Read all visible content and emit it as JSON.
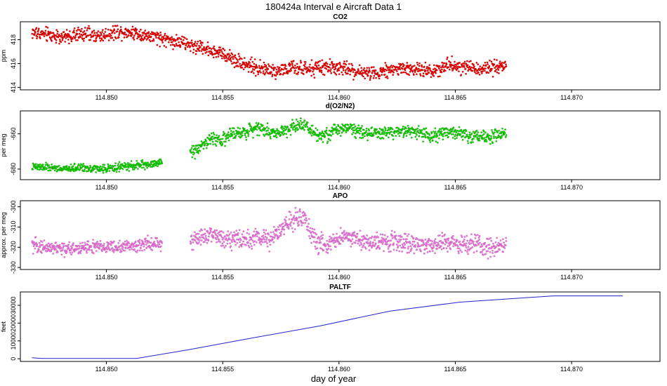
{
  "figure": {
    "title": "180424a   Interval e Aircraft Data 1",
    "xlabel": "day of year"
  },
  "chart_data": [
    {
      "type": "scatter",
      "title": "CO2",
      "ylabel": "ppm",
      "marker_color": "#ee0000",
      "xlim": [
        114.8463,
        114.8738
      ],
      "ylim": [
        413.8,
        419.5
      ],
      "x_ticks": [
        "114.850",
        "114.855",
        "114.860",
        "114.865",
        "114.870"
      ],
      "y_ticks": [
        "414",
        "416",
        "418"
      ],
      "x_range": [
        114.8468,
        114.8672
      ],
      "segments": [
        {
          "x": [
            114.8468,
            114.8475,
            114.8482,
            114.849,
            114.8497,
            114.8505,
            114.8512,
            114.852,
            114.8527,
            114.8535,
            114.8542,
            114.855,
            114.8557,
            114.8565,
            114.8572,
            114.858,
            114.8587,
            114.8595,
            114.8602,
            114.861,
            114.8617,
            114.8625,
            114.8632,
            114.864,
            114.8647,
            114.8655,
            114.8662,
            114.8672
          ],
          "y": [
            418.6,
            418.4,
            418.2,
            418.5,
            418.3,
            418.7,
            418.6,
            418.2,
            418.0,
            417.6,
            417.3,
            416.8,
            416.2,
            415.6,
            415.4,
            415.6,
            415.5,
            415.7,
            415.6,
            415.2,
            415.3,
            415.6,
            415.5,
            415.4,
            415.9,
            415.7,
            415.6,
            415.8
          ],
          "scatter": 0.45
        }
      ]
    },
    {
      "type": "scatter",
      "title": "d(O2/N2)",
      "ylabel": "per meg",
      "marker_color": "#00dd00",
      "xlim": [
        114.8463,
        114.8738
      ],
      "ylim": [
        -686,
        -647
      ],
      "x_ticks": [
        "114.850",
        "114.855",
        "114.860",
        "114.865",
        "114.870"
      ],
      "y_ticks": [
        "-680",
        "-660"
      ],
      "x_range": [
        114.8468,
        114.8672
      ],
      "segments": [
        {
          "x": [
            114.8468,
            114.8475,
            114.8482,
            114.849,
            114.8497,
            114.8505,
            114.8512,
            114.852,
            114.8524
          ],
          "y": [
            -679,
            -679,
            -680,
            -679,
            -680,
            -679,
            -678,
            -677,
            -676
          ],
          "scatter": 1.6
        },
        {
          "x": [
            114.8536,
            114.854,
            114.8545,
            114.855,
            114.8555,
            114.856,
            114.8565,
            114.857,
            114.8575,
            114.858,
            114.8585,
            114.859,
            114.8595,
            114.86,
            114.8605,
            114.861,
            114.8615,
            114.862,
            114.8625,
            114.863,
            114.8635,
            114.864,
            114.8645,
            114.865,
            114.8655,
            114.866,
            114.8665,
            114.8672
          ],
          "y": [
            -671,
            -667,
            -663,
            -663,
            -660,
            -659,
            -656,
            -659,
            -659,
            -656,
            -654,
            -660,
            -661,
            -657,
            -656,
            -659,
            -660,
            -659,
            -659,
            -658,
            -660,
            -661,
            -659,
            -660,
            -661,
            -662,
            -662,
            -660
          ],
          "scatter": 2.8
        }
      ]
    },
    {
      "type": "scatter",
      "title": "APO",
      "ylabel": "approx. per meg",
      "marker_color": "#ee77ee",
      "xlim": [
        114.8463,
        114.8738
      ],
      "ylim": [
        -331,
        -297
      ],
      "x_ticks": [
        "114.850",
        "114.855",
        "114.860",
        "114.865",
        "114.870"
      ],
      "y_ticks": [
        "-330",
        "-320",
        "-310",
        "-300"
      ],
      "x_range": [
        114.8468,
        114.8672
      ],
      "segments": [
        {
          "x": [
            114.8468,
            114.8475,
            114.8482,
            114.849,
            114.8497,
            114.8505,
            114.8512,
            114.852,
            114.8524
          ],
          "y": [
            -319,
            -320,
            -321,
            -320,
            -320,
            -320,
            -319,
            -318,
            -318
          ],
          "scatter": 2.5
        },
        {
          "x": [
            114.8536,
            114.854,
            114.8545,
            114.855,
            114.8555,
            114.856,
            114.8565,
            114.857,
            114.8575,
            114.858,
            114.8585,
            114.859,
            114.8595,
            114.86,
            114.8605,
            114.861,
            114.8615,
            114.862,
            114.8625,
            114.863,
            114.8635,
            114.864,
            114.8645,
            114.865,
            114.8655,
            114.866,
            114.8665,
            114.8672
          ],
          "y": [
            -318,
            -315,
            -314,
            -315,
            -316,
            -316,
            -316,
            -316,
            -312,
            -306,
            -305,
            -318,
            -319,
            -315,
            -315,
            -317,
            -318,
            -317,
            -317,
            -318,
            -318,
            -319,
            -318,
            -318,
            -319,
            -319,
            -320,
            -318
          ],
          "scatter": 3.5
        }
      ]
    },
    {
      "type": "line",
      "title": "PALTF",
      "ylabel": "feet",
      "line_color": "#2222cc",
      "xlim": [
        114.8463,
        114.8738
      ],
      "ylim": [
        -1500,
        37500
      ],
      "x_ticks": [
        "114.850",
        "114.855",
        "114.860",
        "114.865",
        "114.870"
      ],
      "y_ticks": [
        "0",
        "10000",
        "20000",
        "30000"
      ],
      "x": [
        114.8468,
        114.8472,
        114.8513,
        114.8535,
        114.8562,
        114.8592,
        114.8622,
        114.8652,
        114.8692,
        114.8722
      ],
      "y": [
        600,
        200,
        200,
        5000,
        11500,
        18500,
        26800,
        31800,
        35300,
        35300
      ]
    }
  ]
}
